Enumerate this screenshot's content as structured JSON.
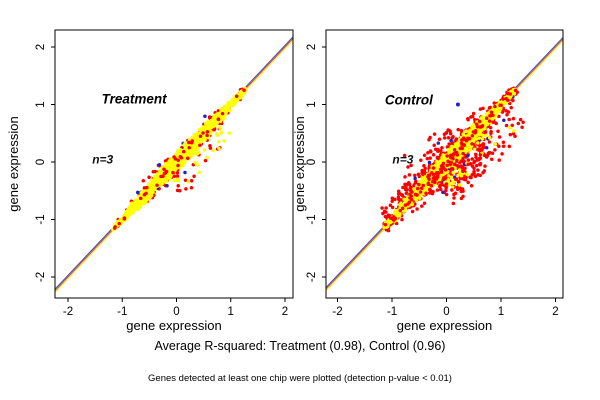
{
  "figure": {
    "background": "#ffffff",
    "caption": "Average R-squared: Treatment (0.98), Control (0.96)",
    "footnote": "Genes detected at least one chip were plotted (detection p-value < 0.01)"
  },
  "chart_data": {
    "type": "scatter",
    "description": "Two panel scatter plots of replicate gene expression agreement; dense yellow core along identity line with red and blue outlier points, three overlaid identity/regression lines (blue, red, yellow) per panel",
    "point_colors": {
      "dense_core": "#ffff00",
      "outlier": "#ff0000",
      "rare": "#2222cc"
    },
    "panels": [
      {
        "title": "Treatment",
        "title_color": "#7a7a7a",
        "annotation": "n=3",
        "xlabel": "gene expression",
        "ylabel": "gene expression",
        "xticks": [
          -2,
          -1,
          0,
          1,
          2
        ],
        "yticks": [
          -2,
          -1,
          0,
          1,
          2
        ],
        "xlim": [
          -2.24,
          2.15
        ],
        "ylim": [
          -2.37,
          2.3
        ],
        "r_squared": 0.98,
        "title_pos": [
          -0.78,
          1.02
        ],
        "annotation_pos": [
          -1.36,
          -0.03
        ],
        "identity_line_colors": [
          "#3c50c8",
          "#e0512a",
          "#f5ee30"
        ],
        "cloud": {
          "t_range": [
            -1.18,
            1.28
          ],
          "half_width_mid": 0.12,
          "half_width_end": 0.025
        },
        "series": [
          {
            "name": "red-outliers-under",
            "color": "#ff0000",
            "n": 260,
            "k": [
              1.05,
              1.9
            ],
            "below_tail": {
              "prob": 0.1,
              "t": [
                -0.3,
                0.9
              ],
              "range": [
                0.05,
                0.4
              ]
            },
            "above_tail": {
              "prob": 0.05,
              "t": [
                -1.1,
                0.2
              ],
              "range": [
                0.03,
                0.15
              ]
            }
          },
          {
            "name": "blue-rare",
            "color": "#2222cc",
            "n": 22,
            "k": [
              1.2,
              2.1
            ],
            "below_tail": {
              "prob": 0.08,
              "t": [
                -0.3,
                0.8
              ],
              "range": [
                0.05,
                0.3
              ]
            }
          },
          {
            "name": "yellow-core",
            "color": "#ffff00",
            "n": 1500,
            "k": [
              0.85,
              1.05
            ],
            "below_tail": {
              "prob": 0.035,
              "t": [
                -0.2,
                0.85
              ],
              "range": [
                0.05,
                0.38
              ]
            }
          },
          {
            "name": "red-outliers-over",
            "color": "#ff0000",
            "n": 45,
            "k": [
              0.4,
              1.3
            ],
            "below_tail": {
              "prob": 0.15,
              "t": [
                -0.2,
                0.85
              ],
              "range": [
                0.05,
                0.35
              ]
            }
          }
        ],
        "extra_points": []
      },
      {
        "title": "Control",
        "title_color": "#7a7a7a",
        "annotation": "n=3",
        "xlabel": "gene expression",
        "ylabel": "gene expression",
        "xticks": [
          -2,
          -1,
          0,
          1,
          2
        ],
        "yticks": [
          -2,
          -1,
          0,
          1,
          2
        ],
        "xlim": [
          -2.21,
          2.14
        ],
        "ylim": [
          -2.37,
          2.3
        ],
        "r_squared": 0.96,
        "title_pos": [
          -0.69,
          1.0
        ],
        "annotation_pos": [
          -0.8,
          -0.03
        ],
        "identity_line_colors": [
          "#3c50c8",
          "#e0512a",
          "#f5ee30"
        ],
        "cloud": {
          "t_range": [
            -1.15,
            1.26
          ],
          "half_width_mid": 0.13,
          "half_width_end": 0.03
        },
        "series": [
          {
            "name": "red-outliers-under",
            "color": "#ff0000",
            "n": 950,
            "k": [
              1.05,
              3.0
            ],
            "below_tail": {
              "prob": 0.25,
              "t": [
                -0.3,
                1.05
              ],
              "range": [
                0.05,
                0.55
              ]
            },
            "above_tail": {
              "prob": 0.15,
              "t": [
                -1.15,
                0.3
              ],
              "range": [
                0.04,
                0.3
              ]
            }
          },
          {
            "name": "blue-rare",
            "color": "#2222cc",
            "n": 48,
            "k": [
              1.2,
              3.0
            ],
            "below_tail": {
              "prob": 0.15,
              "t": [
                -0.4,
                0.9
              ],
              "range": [
                0.05,
                0.4
              ]
            }
          },
          {
            "name": "yellow-core",
            "color": "#ffff00",
            "n": 1500,
            "k": [
              0.85,
              1.05
            ],
            "below_tail": {
              "prob": 0.05,
              "t": [
                -0.2,
                0.9
              ],
              "range": [
                0.05,
                0.45
              ]
            }
          },
          {
            "name": "red-outliers-over",
            "color": "#ff0000",
            "n": 140,
            "k": [
              0.4,
              1.6
            ],
            "below_tail": {
              "prob": 0.2,
              "t": [
                -0.2,
                0.9
              ],
              "range": [
                0.05,
                0.45
              ]
            }
          }
        ],
        "extra_points": [
          {
            "x": 0.21,
            "y": 1.0,
            "color": "#2222cc"
          }
        ]
      }
    ]
  }
}
